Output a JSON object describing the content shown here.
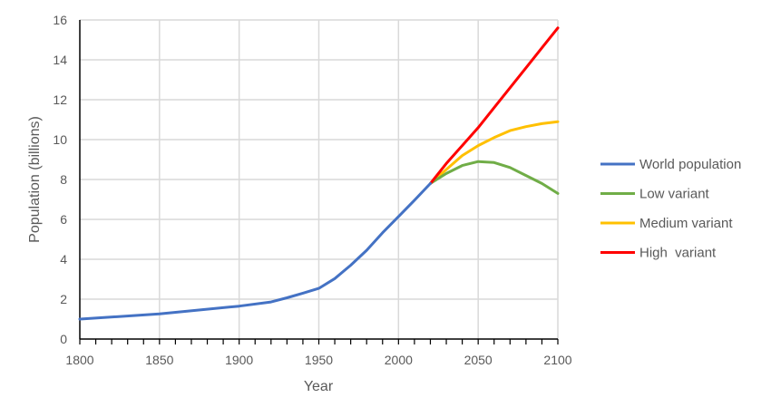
{
  "chart_data": {
    "type": "line",
    "title": "",
    "xlabel": "Year",
    "ylabel": "Population (billions)",
    "xlim": [
      1800,
      2100
    ],
    "ylim": [
      0,
      16
    ],
    "xticks": [
      1800,
      1850,
      1900,
      1950,
      2000,
      2050,
      2100
    ],
    "yticks": [
      0,
      2,
      4,
      6,
      8,
      10,
      12,
      14,
      16
    ],
    "x_minor_tick_step": 10,
    "grid": true,
    "legend_position": "right",
    "series": [
      {
        "name": "World population",
        "color": "#4472C4",
        "x": [
          1800,
          1850,
          1900,
          1920,
          1930,
          1940,
          1950,
          1960,
          1970,
          1980,
          1990,
          2000,
          2010,
          2020
        ],
        "y": [
          1.0,
          1.26,
          1.65,
          1.86,
          2.07,
          2.3,
          2.54,
          3.03,
          3.7,
          4.45,
          5.33,
          6.14,
          6.96,
          7.8
        ]
      },
      {
        "name": "Low variant",
        "color": "#70AD47",
        "x": [
          2020,
          2030,
          2040,
          2050,
          2060,
          2070,
          2080,
          2090,
          2100
        ],
        "y": [
          7.8,
          8.3,
          8.7,
          8.9,
          8.85,
          8.6,
          8.2,
          7.8,
          7.3
        ]
      },
      {
        "name": "Medium variant",
        "color": "#FFC000",
        "x": [
          2020,
          2030,
          2040,
          2050,
          2060,
          2070,
          2080,
          2090,
          2100
        ],
        "y": [
          7.8,
          8.5,
          9.2,
          9.7,
          10.1,
          10.45,
          10.65,
          10.8,
          10.9
        ]
      },
      {
        "name": "High  variant",
        "color": "#FF0000",
        "x": [
          2020,
          2030,
          2040,
          2050,
          2060,
          2070,
          2080,
          2090,
          2100
        ],
        "y": [
          7.8,
          8.8,
          9.7,
          10.6,
          11.6,
          12.6,
          13.6,
          14.6,
          15.6
        ]
      }
    ]
  }
}
